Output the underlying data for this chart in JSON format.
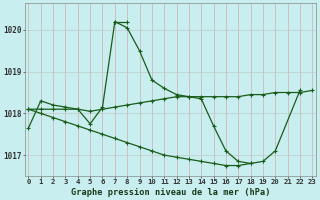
{
  "title": "Graphe pression niveau de la mer (hPa)",
  "bg_color": "#c8eef0",
  "line_color": "#1a5c1a",
  "hours": [
    0,
    1,
    2,
    3,
    4,
    5,
    6,
    7,
    8,
    9,
    10,
    11,
    12,
    13,
    14,
    15,
    16,
    17,
    18,
    19,
    20,
    21,
    22,
    23
  ],
  "s1": [
    1017.65,
    1018.3,
    1018.2,
    1018.15,
    1018.1,
    1017.75,
    1018.15,
    1020.2,
    1020.05,
    1019.5,
    1018.8,
    1018.6,
    1018.45,
    1018.4,
    1018.35,
    1017.7,
    1017.1,
    1016.85,
    1016.8,
    1016.85,
    1017.1,
    null,
    1018.55,
    null
  ],
  "s2": [
    null,
    null,
    null,
    null,
    null,
    null,
    null,
    1020.2,
    1020.2,
    null,
    null,
    null,
    null,
    null,
    null,
    null,
    null,
    null,
    null,
    null,
    null,
    null,
    null,
    null
  ],
  "s3": [
    1018.1,
    1018.1,
    1018.1,
    1018.1,
    1018.1,
    1018.05,
    1018.1,
    1018.15,
    1018.2,
    1018.25,
    1018.3,
    1018.35,
    1018.4,
    1018.4,
    1018.4,
    1018.4,
    1018.4,
    1018.4,
    1018.45,
    1018.45,
    1018.5,
    1018.5,
    1018.5,
    1018.55
  ],
  "s4": [
    1018.1,
    1018.0,
    1017.9,
    1017.8,
    1017.7,
    1017.6,
    1017.5,
    1017.4,
    1017.3,
    1017.2,
    1017.1,
    1017.0,
    1016.95,
    1016.9,
    1016.85,
    1016.8,
    1016.75,
    1016.75,
    1016.8,
    null,
    null,
    null,
    null,
    null
  ],
  "ylim": [
    1016.5,
    1020.65
  ],
  "yticks": [
    1017,
    1018,
    1019,
    1020
  ],
  "xlim": [
    -0.3,
    23.3
  ]
}
